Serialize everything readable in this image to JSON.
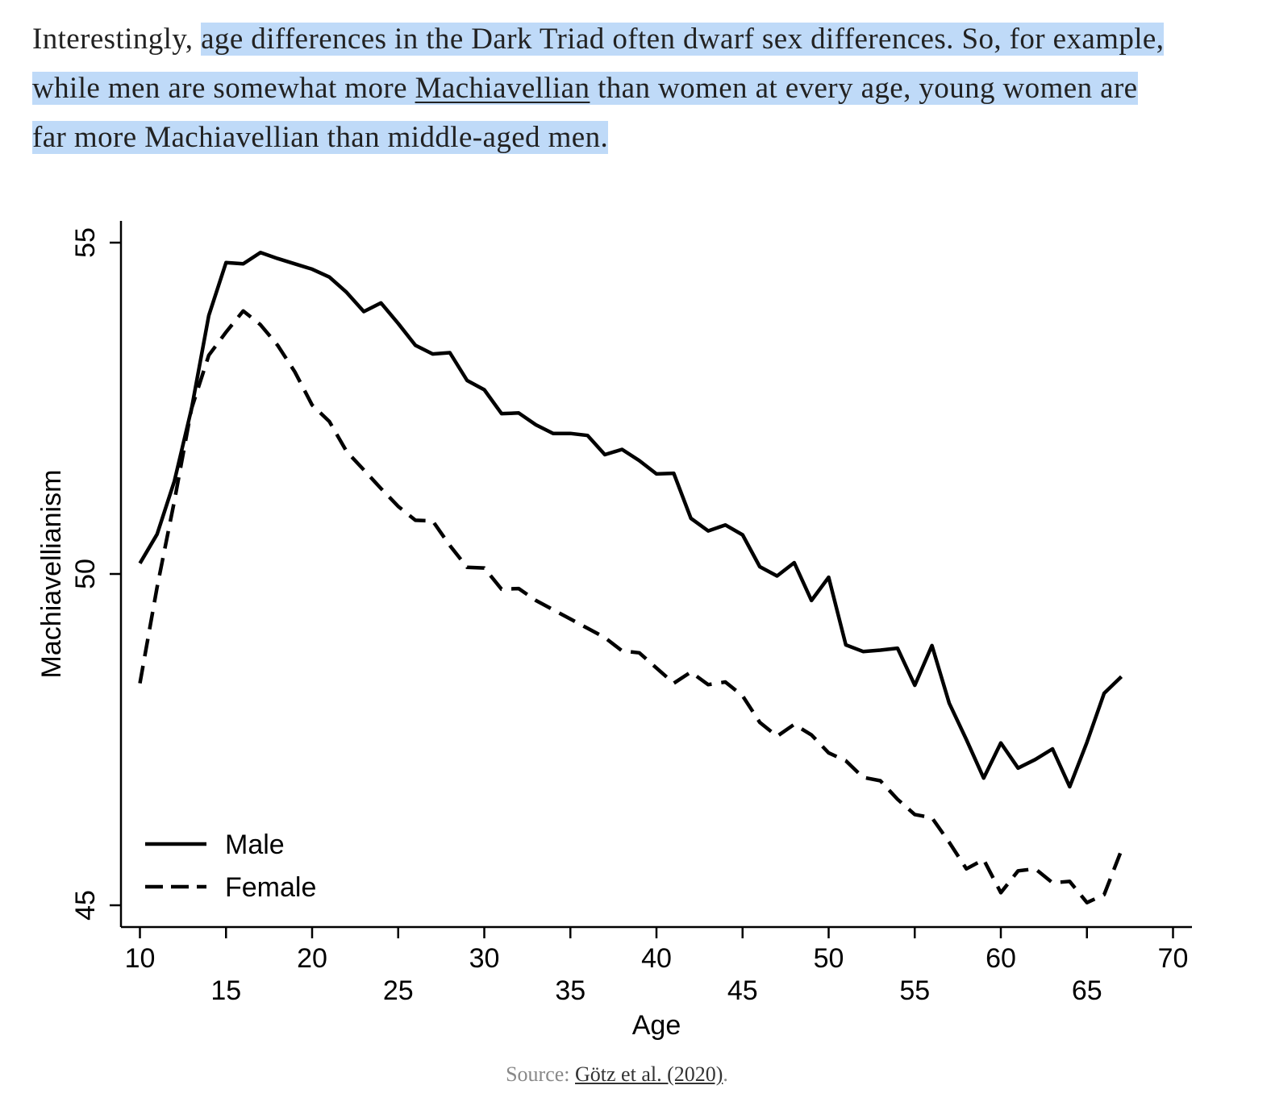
{
  "article": {
    "lead": "Interestingly, ",
    "part1": "age differences in the Dark Triad often dwarf sex differences. So, for example, while men are somewhat more ",
    "link": "Machiavellian",
    "part2": " than women at every age, young women are far more Machiavellian than middle-aged men."
  },
  "chart_data": {
    "type": "line",
    "title": "",
    "xlabel": "Age",
    "ylabel": "Machiavellianism",
    "xlim": [
      9,
      70
    ],
    "ylim": [
      44.7,
      55.3
    ],
    "xticks_top": [
      "10",
      "20",
      "30",
      "40",
      "50",
      "60",
      "70"
    ],
    "xticks_bottom": [
      "15",
      "25",
      "35",
      "45",
      "55",
      "65"
    ],
    "yticks": [
      "45",
      "50",
      "55"
    ],
    "grid": false,
    "legend_position": "bottom-left",
    "x": [
      10,
      11,
      12,
      13,
      14,
      15,
      16,
      17,
      18,
      19,
      20,
      21,
      22,
      23,
      24,
      25,
      26,
      27,
      28,
      29,
      30,
      31,
      32,
      33,
      34,
      35,
      36,
      37,
      38,
      39,
      40,
      41,
      42,
      43,
      44,
      45,
      46,
      47,
      48,
      49,
      50,
      51,
      52,
      53,
      54,
      55,
      56,
      57,
      58,
      59,
      60,
      61,
      62,
      63,
      64,
      65,
      66,
      67
    ],
    "series": [
      {
        "name": "Male",
        "style": "solid",
        "values": [
          50.16,
          50.6,
          51.4,
          52.5,
          53.9,
          54.7,
          54.68,
          54.85,
          54.76,
          54.68,
          54.6,
          54.48,
          54.25,
          53.96,
          54.09,
          53.78,
          53.45,
          53.32,
          53.34,
          52.92,
          52.78,
          52.42,
          52.43,
          52.25,
          52.12,
          52.12,
          52.09,
          51.8,
          51.88,
          51.71,
          51.51,
          51.52,
          50.84,
          50.65,
          50.74,
          50.59,
          50.11,
          49.97,
          50.17,
          49.6,
          49.95,
          48.93,
          48.83,
          48.85,
          48.88,
          48.32,
          48.92,
          48.05,
          47.5,
          46.92,
          47.45,
          47.07,
          47.2,
          47.36,
          46.79,
          47.46,
          48.2,
          48.45
        ]
      },
      {
        "name": "Female",
        "style": "dashed",
        "values": [
          48.35,
          49.8,
          51.1,
          52.5,
          53.3,
          53.65,
          53.97,
          53.76,
          53.45,
          53.05,
          52.55,
          52.3,
          51.85,
          51.57,
          51.29,
          51.02,
          50.81,
          50.8,
          50.43,
          50.1,
          50.09,
          49.77,
          49.78,
          49.6,
          49.46,
          49.32,
          49.18,
          49.04,
          48.84,
          48.81,
          48.58,
          48.35,
          48.52,
          48.33,
          48.37,
          48.16,
          47.76,
          47.55,
          47.73,
          47.57,
          47.3,
          47.18,
          46.93,
          46.88,
          46.6,
          46.37,
          46.32,
          45.95,
          45.55,
          45.69,
          45.19,
          45.52,
          45.55,
          45.34,
          45.36,
          45.04,
          45.16,
          45.83
        ]
      }
    ]
  },
  "caption": {
    "prefix": "Source: ",
    "link": "Götz et al. (2020)",
    "suffix": "."
  }
}
